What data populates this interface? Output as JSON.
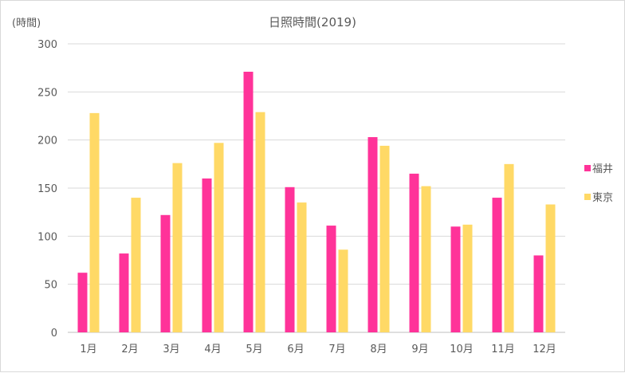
{
  "chart_data": {
    "type": "bar",
    "title": "日照時間(2019)",
    "ylabel": "(時間)",
    "xlabel": "",
    "ylim": [
      0,
      300
    ],
    "yticks": [
      0,
      50,
      100,
      150,
      200,
      250,
      300
    ],
    "grid": true,
    "legend_position": "right",
    "categories": [
      "1月",
      "2月",
      "3月",
      "4月",
      "5月",
      "6月",
      "7月",
      "8月",
      "9月",
      "10月",
      "11月",
      "12月"
    ],
    "series": [
      {
        "name": "福井",
        "color": "#FF3399",
        "values": [
          62,
          82,
          122,
          160,
          271,
          151,
          111,
          203,
          165,
          110,
          140,
          80
        ]
      },
      {
        "name": "東京",
        "color": "#FFD966",
        "values": [
          228,
          140,
          176,
          197,
          229,
          135,
          86,
          194,
          152,
          112,
          175,
          133
        ]
      }
    ]
  }
}
